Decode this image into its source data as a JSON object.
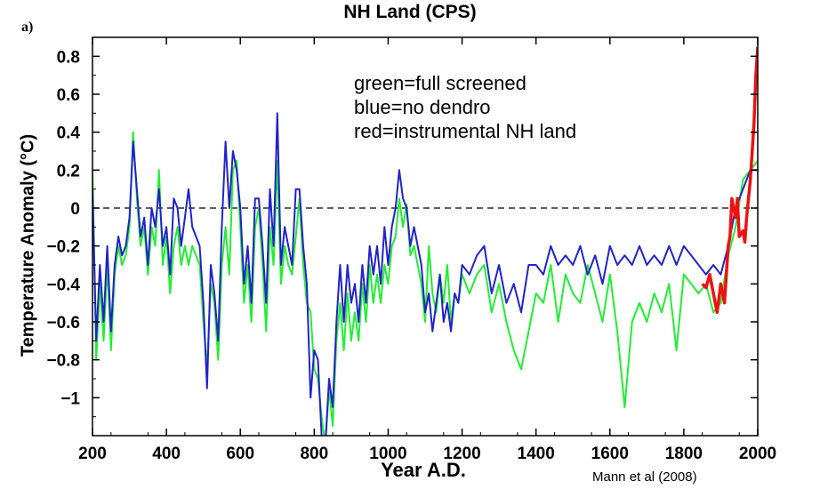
{
  "panel_label": "a)",
  "legend_lines": [
    "green=full screened",
    "blue=no dendro",
    "red=instrumental NH land"
  ],
  "credit": "Mann et al (2008)",
  "colors": {
    "green": "#22ee33",
    "blue": "#2222cc",
    "red": "#ee1111",
    "zero_line": "#000000"
  },
  "chart_data": {
    "type": "line",
    "title": "NH Land (CPS)",
    "xlabel": "Year A.D.",
    "ylabel": "Temperature Anomaly (°C)",
    "xlim": [
      200,
      2000
    ],
    "ylim": [
      -1.2,
      0.9
    ],
    "xticks": [
      200,
      400,
      600,
      800,
      1000,
      1200,
      1400,
      1600,
      1800,
      2000
    ],
    "xtick_labels": [
      "200",
      "400",
      "600",
      "800",
      "1000",
      "1200",
      "1400",
      "1600",
      "1800",
      "2000"
    ],
    "yticks": [
      -1.0,
      -0.8,
      -0.6,
      -0.4,
      -0.2,
      0,
      0.2,
      0.4,
      0.6,
      0.8
    ],
    "ytick_labels": [
      "−1",
      "−0.8",
      "−0.6",
      "−0.4",
      "−0.2",
      "0",
      "0.2",
      "0.4",
      "0.6",
      "0.8"
    ],
    "reference_line": 0,
    "series": [
      {
        "name": "full screened",
        "color": "green",
        "x": [
          200,
          210,
          220,
          230,
          240,
          250,
          260,
          270,
          280,
          290,
          300,
          310,
          320,
          330,
          340,
          350,
          360,
          370,
          380,
          390,
          400,
          410,
          420,
          430,
          440,
          450,
          460,
          470,
          480,
          490,
          500,
          510,
          520,
          530,
          540,
          550,
          560,
          570,
          580,
          590,
          600,
          610,
          620,
          630,
          640,
          650,
          660,
          670,
          680,
          690,
          700,
          710,
          720,
          730,
          740,
          750,
          760,
          770,
          780,
          790,
          800,
          810,
          820,
          830,
          840,
          850,
          860,
          870,
          880,
          890,
          900,
          910,
          920,
          930,
          940,
          950,
          960,
          970,
          980,
          990,
          1000,
          1010,
          1020,
          1030,
          1040,
          1050,
          1060,
          1070,
          1080,
          1090,
          1100,
          1110,
          1120,
          1130,
          1140,
          1150,
          1160,
          1170,
          1180,
          1190,
          1200,
          1220,
          1240,
          1260,
          1280,
          1300,
          1320,
          1340,
          1360,
          1380,
          1400,
          1420,
          1440,
          1460,
          1480,
          1500,
          1520,
          1540,
          1560,
          1580,
          1600,
          1620,
          1640,
          1660,
          1680,
          1700,
          1720,
          1740,
          1760,
          1780,
          1800,
          1820,
          1840,
          1860,
          1880,
          1900,
          1920,
          1940,
          1960,
          1980,
          2000
        ],
        "values": [
          0.2,
          -0.8,
          -0.4,
          -0.7,
          -0.3,
          -0.75,
          -0.35,
          -0.2,
          -0.3,
          -0.25,
          -0.1,
          0.4,
          0.05,
          -0.2,
          -0.1,
          -0.35,
          -0.1,
          -0.2,
          0.2,
          -0.3,
          -0.15,
          -0.45,
          -0.2,
          -0.1,
          -0.3,
          -0.2,
          -0.3,
          -0.2,
          -0.25,
          -0.3,
          -0.6,
          -0.85,
          -0.4,
          -0.5,
          -0.8,
          -0.3,
          -0.1,
          -0.35,
          0.2,
          0.25,
          -0.1,
          -0.5,
          -0.3,
          -0.6,
          -0.1,
          0.0,
          -0.3,
          -0.65,
          -0.1,
          -0.3,
          0.25,
          -0.4,
          -0.2,
          -0.3,
          -0.35,
          -0.15,
          0.05,
          -0.3,
          -0.5,
          -0.55,
          -0.85,
          -0.9,
          -1.1,
          -1.25,
          -0.95,
          -1.15,
          -0.7,
          -0.5,
          -0.75,
          -0.45,
          -0.7,
          -0.55,
          -0.7,
          -0.4,
          -0.6,
          -0.3,
          -0.5,
          -0.35,
          -0.5,
          -0.3,
          -0.4,
          -0.2,
          -0.15,
          0.05,
          -0.1,
          0.02,
          -0.25,
          -0.2,
          -0.3,
          -0.4,
          -0.6,
          -0.2,
          -0.45,
          -0.55,
          -0.35,
          -0.5,
          -0.3,
          -0.6,
          -0.45,
          -0.5,
          -0.35,
          -0.45,
          -0.35,
          -0.3,
          -0.55,
          -0.4,
          -0.6,
          -0.75,
          -0.85,
          -0.65,
          -0.45,
          -0.5,
          -0.3,
          -0.6,
          -0.35,
          -0.45,
          -0.5,
          -0.3,
          -0.45,
          -0.6,
          -0.35,
          -0.65,
          -1.05,
          -0.6,
          -0.5,
          -0.6,
          -0.45,
          -0.55,
          -0.4,
          -0.75,
          -0.35,
          -0.4,
          -0.45,
          -0.4,
          -0.55,
          -0.5,
          -0.25,
          -0.1,
          0.15,
          0.2,
          0.25
        ]
      },
      {
        "name": "no dendro",
        "color": "blue",
        "x": [
          200,
          210,
          220,
          230,
          240,
          250,
          260,
          270,
          280,
          290,
          300,
          310,
          320,
          330,
          340,
          350,
          360,
          370,
          380,
          390,
          400,
          410,
          420,
          430,
          440,
          450,
          460,
          470,
          480,
          490,
          500,
          510,
          520,
          530,
          540,
          550,
          560,
          570,
          580,
          590,
          600,
          610,
          620,
          630,
          640,
          650,
          660,
          670,
          680,
          690,
          700,
          710,
          720,
          730,
          740,
          750,
          760,
          770,
          780,
          790,
          800,
          810,
          820,
          830,
          840,
          850,
          860,
          870,
          880,
          890,
          900,
          910,
          920,
          930,
          940,
          950,
          960,
          970,
          980,
          990,
          1000,
          1010,
          1020,
          1030,
          1040,
          1050,
          1060,
          1070,
          1080,
          1090,
          1100,
          1110,
          1120,
          1130,
          1140,
          1150,
          1160,
          1170,
          1180,
          1190,
          1200,
          1220,
          1240,
          1260,
          1280,
          1300,
          1320,
          1340,
          1360,
          1380,
          1400,
          1420,
          1440,
          1460,
          1480,
          1500,
          1520,
          1540,
          1560,
          1580,
          1600,
          1620,
          1640,
          1660,
          1680,
          1700,
          1720,
          1740,
          1760,
          1780,
          1800,
          1820,
          1840,
          1860,
          1880,
          1900,
          1920,
          1940,
          1960,
          1980,
          2000
        ],
        "values": [
          0.1,
          -0.7,
          -0.3,
          -0.6,
          -0.2,
          -0.65,
          -0.3,
          -0.15,
          -0.25,
          -0.2,
          -0.05,
          0.35,
          0.1,
          -0.15,
          -0.05,
          -0.3,
          0.0,
          -0.1,
          0.1,
          -0.2,
          -0.1,
          -0.35,
          0.05,
          0.0,
          -0.2,
          -0.05,
          0.1,
          -0.1,
          -0.15,
          -0.2,
          -0.5,
          -0.95,
          -0.3,
          -0.45,
          -0.7,
          -0.1,
          0.35,
          0.0,
          0.3,
          0.2,
          0.0,
          -0.4,
          -0.2,
          -0.5,
          0.05,
          0.05,
          -0.2,
          -0.5,
          0.1,
          -0.2,
          0.5,
          -0.3,
          -0.1,
          -0.2,
          -0.3,
          0.1,
          0.1,
          -0.2,
          -0.4,
          -1.0,
          -0.75,
          -0.8,
          -1.2,
          -1.25,
          -0.9,
          -1.05,
          -0.6,
          -0.3,
          -0.6,
          -0.3,
          -0.5,
          -0.4,
          -0.6,
          -0.3,
          -0.5,
          -0.2,
          -0.35,
          -0.2,
          -0.4,
          -0.1,
          -0.3,
          -0.1,
          0.0,
          0.2,
          0.05,
          0.0,
          -0.2,
          -0.1,
          -0.2,
          -0.3,
          -0.55,
          -0.45,
          -0.65,
          -0.5,
          -0.35,
          -0.6,
          -0.5,
          -0.65,
          -0.45,
          -0.5,
          -0.3,
          -0.35,
          -0.25,
          -0.2,
          -0.45,
          -0.3,
          -0.5,
          -0.4,
          -0.55,
          -0.3,
          -0.3,
          -0.35,
          -0.2,
          -0.3,
          -0.25,
          -0.3,
          -0.2,
          -0.35,
          -0.25,
          -0.4,
          -0.2,
          -0.3,
          -0.25,
          -0.3,
          -0.2,
          -0.3,
          -0.25,
          -0.3,
          -0.2,
          -0.3,
          -0.2,
          -0.25,
          -0.3,
          -0.35,
          -0.3,
          -0.35,
          -0.2,
          0.0,
          0.1,
          0.2,
          0.2
        ]
      },
      {
        "name": "instrumental NH land",
        "color": "red",
        "x": [
          1850,
          1860,
          1870,
          1880,
          1890,
          1900,
          1910,
          1920,
          1925,
          1930,
          1940,
          1945,
          1950,
          1960,
          1965,
          1970,
          1975,
          1980,
          1985,
          1990,
          1995,
          2000
        ],
        "values": [
          -0.4,
          -0.42,
          -0.35,
          -0.45,
          -0.55,
          -0.4,
          -0.5,
          -0.2,
          -0.15,
          0.05,
          -0.05,
          0.05,
          -0.15,
          -0.12,
          -0.18,
          -0.05,
          0.05,
          0.15,
          0.3,
          0.45,
          0.7,
          0.85
        ]
      }
    ],
    "grid": false,
    "legend": "top-center text"
  }
}
